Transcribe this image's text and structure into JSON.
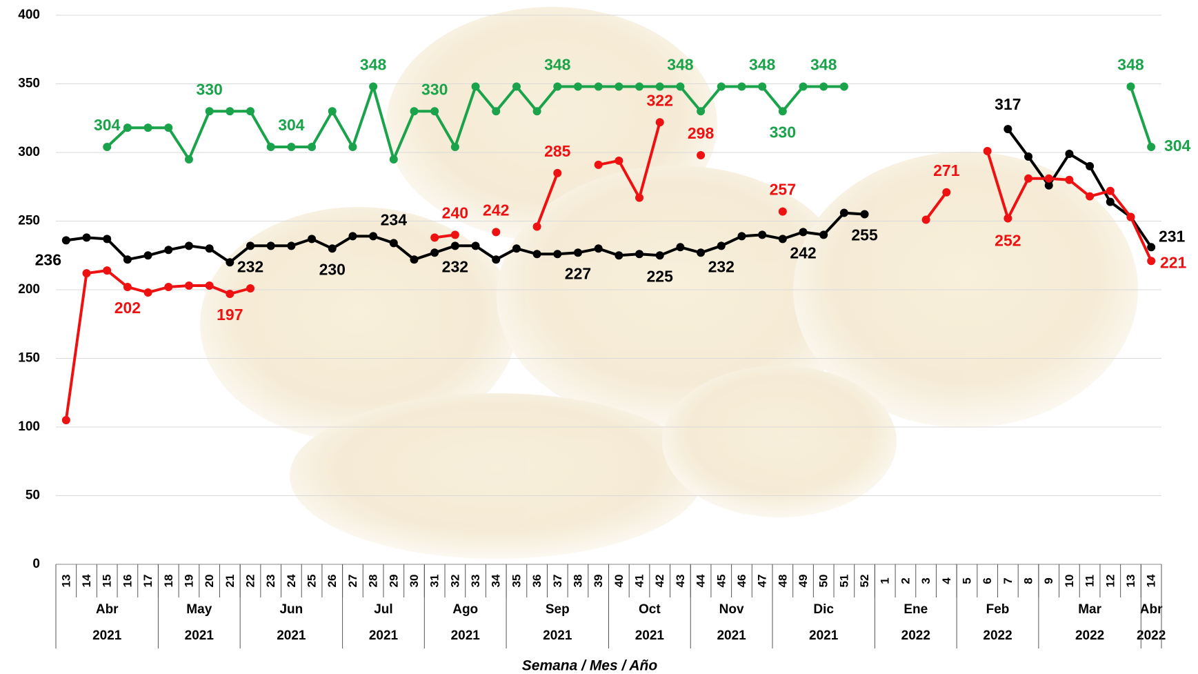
{
  "chart_data": {
    "type": "line",
    "x_label": "Semana / Mes / Año",
    "categories": [
      "13",
      "14",
      "15",
      "16",
      "17",
      "18",
      "19",
      "20",
      "21",
      "22",
      "23",
      "24",
      "25",
      "26",
      "27",
      "28",
      "29",
      "30",
      "31",
      "32",
      "33",
      "34",
      "35",
      "36",
      "37",
      "38",
      "39",
      "40",
      "41",
      "42",
      "43",
      "44",
      "45",
      "46",
      "47",
      "48",
      "49",
      "50",
      "51",
      "52",
      "1",
      "2",
      "3",
      "4",
      "5",
      "6",
      "7",
      "8",
      "9",
      "10",
      "11",
      "12",
      "13",
      "14"
    ],
    "months": [
      "Abr",
      "Abr",
      "Abr",
      "Abr",
      "Abr",
      "May",
      "May",
      "May",
      "May",
      "Jun",
      "Jun",
      "Jun",
      "Jun",
      "Jun",
      "Jul",
      "Jul",
      "Jul",
      "Jul",
      "Ago",
      "Ago",
      "Ago",
      "Ago",
      "Sep",
      "Sep",
      "Sep",
      "Sep",
      "Sep",
      "Oct",
      "Oct",
      "Oct",
      "Oct",
      "Nov",
      "Nov",
      "Nov",
      "Nov",
      "Dic",
      "Dic",
      "Dic",
      "Dic",
      "Dic",
      "Ene",
      "Ene",
      "Ene",
      "Ene",
      "Feb",
      "Feb",
      "Feb",
      "Feb",
      "Mar",
      "Mar",
      "Mar",
      "Mar",
      "Mar",
      "Abr"
    ],
    "years": [
      "2021",
      "2021",
      "2021",
      "2021",
      "2021",
      "2021",
      "2021",
      "2021",
      "2021",
      "2021",
      "2021",
      "2021",
      "2021",
      "2021",
      "2021",
      "2021",
      "2021",
      "2021",
      "2021",
      "2021",
      "2021",
      "2021",
      "2021",
      "2021",
      "2021",
      "2021",
      "2021",
      "2021",
      "2021",
      "2021",
      "2021",
      "2021",
      "2021",
      "2021",
      "2021",
      "2021",
      "2021",
      "2021",
      "2021",
      "2021",
      "2022",
      "2022",
      "2022",
      "2022",
      "2022",
      "2022",
      "2022",
      "2022",
      "2022",
      "2022",
      "2022",
      "2022",
      "2022",
      "2022"
    ],
    "ylim": [
      0,
      400
    ],
    "yticks": [
      0,
      50,
      100,
      150,
      200,
      250,
      300,
      350,
      400
    ],
    "grid": true,
    "series": [
      {
        "color": "#1aa34a",
        "values": [
          null,
          null,
          304,
          318,
          318,
          318,
          295,
          330,
          330,
          330,
          304,
          304,
          304,
          330,
          304,
          348,
          295,
          330,
          330,
          304,
          348,
          330,
          348,
          330,
          348,
          348,
          348,
          348,
          348,
          348,
          348,
          330,
          348,
          348,
          348,
          330,
          348,
          348,
          348,
          null,
          null,
          null,
          null,
          null,
          null,
          null,
          null,
          null,
          null,
          null,
          null,
          null,
          348,
          304
        ],
        "value_labels": [
          null,
          null,
          "304",
          null,
          null,
          null,
          null,
          "330",
          null,
          null,
          null,
          "304",
          null,
          null,
          null,
          "348",
          null,
          null,
          "330",
          null,
          null,
          null,
          null,
          null,
          "348",
          null,
          null,
          null,
          null,
          null,
          "348",
          null,
          null,
          null,
          "348",
          "330",
          null,
          "348",
          null,
          null,
          null,
          null,
          null,
          null,
          null,
          null,
          null,
          null,
          null,
          null,
          null,
          null,
          "348",
          "304"
        ]
      },
      {
        "color": "#000000",
        "values": [
          236,
          238,
          237,
          222,
          225,
          229,
          232,
          230,
          220,
          232,
          232,
          232,
          237,
          230,
          239,
          239,
          234,
          222,
          227,
          232,
          232,
          222,
          230,
          226,
          226,
          227,
          230,
          225,
          226,
          225,
          231,
          227,
          232,
          239,
          240,
          237,
          242,
          240,
          256,
          255,
          null,
          null,
          null,
          null,
          null,
          null,
          317,
          297,
          276,
          299,
          290,
          264,
          253,
          231
        ],
        "value_labels": [
          "236",
          null,
          null,
          null,
          null,
          null,
          null,
          null,
          null,
          "232",
          null,
          null,
          null,
          "230",
          null,
          null,
          "234",
          null,
          null,
          "232",
          null,
          null,
          null,
          null,
          null,
          "227",
          null,
          null,
          null,
          "225",
          null,
          null,
          "232",
          null,
          null,
          null,
          "242",
          null,
          null,
          "255",
          null,
          null,
          null,
          null,
          null,
          null,
          "317",
          null,
          null,
          null,
          null,
          null,
          null,
          "231"
        ]
      },
      {
        "color": "#ee1111",
        "values": [
          105,
          212,
          214,
          202,
          198,
          202,
          203,
          203,
          197,
          201,
          null,
          null,
          null,
          null,
          null,
          null,
          null,
          null,
          238,
          240,
          null,
          242,
          null,
          246,
          285,
          null,
          291,
          294,
          267,
          322,
          null,
          298,
          null,
          null,
          null,
          257,
          null,
          null,
          null,
          null,
          null,
          null,
          251,
          271,
          null,
          301,
          252,
          281,
          281,
          280,
          268,
          272,
          253,
          221
        ],
        "value_labels": [
          null,
          null,
          null,
          "202",
          null,
          null,
          null,
          null,
          "197",
          null,
          null,
          null,
          null,
          null,
          null,
          null,
          null,
          null,
          null,
          "240",
          null,
          "242",
          null,
          null,
          "285",
          null,
          null,
          null,
          null,
          "322",
          null,
          "298",
          null,
          null,
          null,
          "257",
          null,
          null,
          null,
          null,
          null,
          null,
          null,
          "271",
          null,
          null,
          "252",
          null,
          null,
          null,
          null,
          null,
          null,
          "221"
        ]
      }
    ]
  }
}
